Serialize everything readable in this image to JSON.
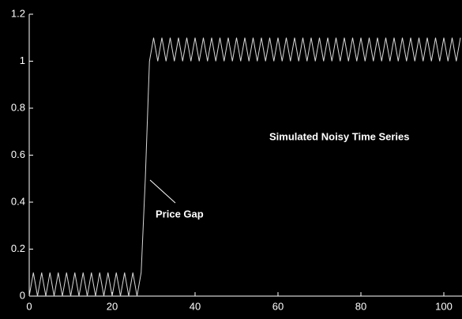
{
  "chart_data": {
    "type": "line",
    "annotations": [
      "Simulated Noisy Time Series",
      "Price Gap"
    ],
    "x": [
      0,
      1,
      2,
      3,
      4,
      5,
      6,
      7,
      8,
      9,
      10,
      11,
      12,
      13,
      14,
      15,
      16,
      17,
      18,
      19,
      20,
      21,
      22,
      23,
      24,
      25,
      26,
      27,
      28,
      29,
      30,
      31,
      32,
      33,
      34,
      35,
      36,
      37,
      38,
      39,
      40,
      41,
      42,
      43,
      44,
      45,
      46,
      47,
      48,
      49,
      50,
      51,
      52,
      53,
      54,
      55,
      56,
      57,
      58,
      59,
      60,
      61,
      62,
      63,
      64,
      65,
      66,
      67,
      68,
      69,
      70,
      71,
      72,
      73,
      74,
      75,
      76,
      77,
      78,
      79,
      80,
      81,
      82,
      83,
      84,
      85,
      86,
      87,
      88,
      89,
      90,
      91,
      92,
      93,
      94,
      95,
      96,
      97,
      98,
      99,
      100,
      101,
      102,
      103,
      104
    ],
    "values": [
      0,
      0.1,
      0,
      0.1,
      0,
      0.1,
      0,
      0.1,
      0,
      0.1,
      0,
      0.1,
      0,
      0.1,
      0,
      0.1,
      0,
      0.1,
      0,
      0.1,
      0,
      0.1,
      0,
      0.1,
      0,
      0.1,
      0,
      0.1,
      0.5,
      1,
      1.1,
      1,
      1.1,
      1,
      1.1,
      1,
      1.1,
      1,
      1.1,
      1,
      1.1,
      1,
      1.1,
      1,
      1.1,
      1,
      1.1,
      1,
      1.1,
      1,
      1.1,
      1,
      1.1,
      1,
      1.1,
      1,
      1.1,
      1,
      1.1,
      1,
      1.1,
      1,
      1.1,
      1,
      1.1,
      1,
      1.1,
      1,
      1.1,
      1,
      1.1,
      1,
      1.1,
      1,
      1.1,
      1,
      1.1,
      1,
      1.1,
      1,
      1.1,
      1,
      1.1,
      1,
      1.1,
      1,
      1.1,
      1,
      1.1,
      1,
      1.1,
      1,
      1.1,
      1,
      1.1,
      1,
      1.1,
      1,
      1.1,
      1,
      1.1,
      1,
      1.1,
      1,
      1.1
    ],
    "color": "#d8d8d8",
    "xlim": [
      0,
      104
    ],
    "xticks": [
      0,
      20,
      40,
      60,
      80,
      100
    ],
    "ylim": [
      0,
      1.2
    ],
    "yticks": [
      0,
      0.2,
      0.4,
      0.6,
      0.8,
      1,
      1.2
    ],
    "grid": false
  }
}
